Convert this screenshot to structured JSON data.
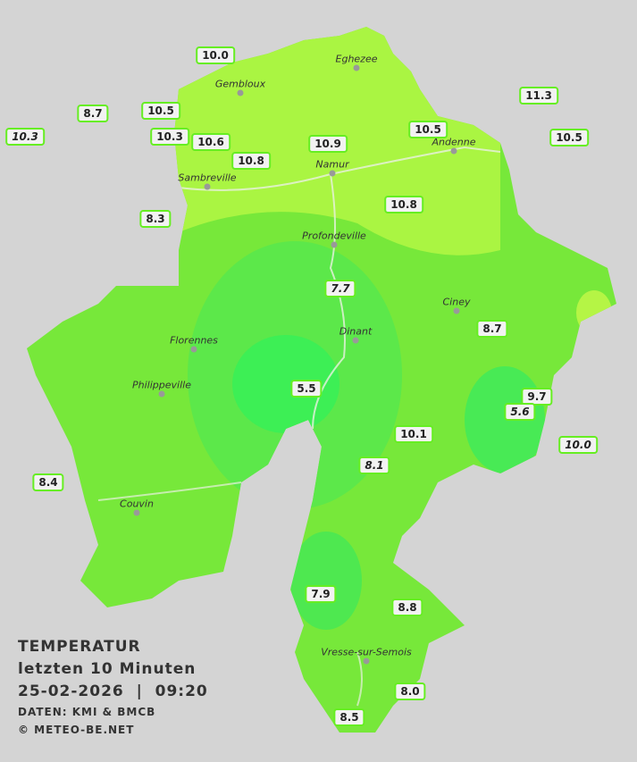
{
  "legend": {
    "title": "TEMPERATUR",
    "period": "letzten 10 Minuten",
    "datetime": "25-02-2026  |  09:20",
    "source": "DATEN: KMI & BMCB",
    "copyright": "© METEO-BE.NET"
  },
  "cities": [
    "Eghezee",
    "Gembloux",
    "Andenne",
    "Namur",
    "Sambreville",
    "Profondeville",
    "Ciney",
    "Dinant",
    "Florennes",
    "Philippeville",
    "Couvin",
    "Vresse-sur-Semois"
  ],
  "stations": [
    {
      "label": "10.0"
    },
    {
      "label": "8.7"
    },
    {
      "label": "10.5"
    },
    {
      "label": "10.3",
      "italic": true
    },
    {
      "label": "10.3"
    },
    {
      "label": "10.6"
    },
    {
      "label": "10.8"
    },
    {
      "label": "10.9"
    },
    {
      "label": "10.5"
    },
    {
      "label": "11.3"
    },
    {
      "label": "10.5"
    },
    {
      "label": "10.8"
    },
    {
      "label": "8.3"
    },
    {
      "label": "7.7",
      "italic": true
    },
    {
      "label": "8.7"
    },
    {
      "label": "5.5"
    },
    {
      "label": "9.7"
    },
    {
      "label": "5.6",
      "italic": true
    },
    {
      "label": "10.1"
    },
    {
      "label": "10.0",
      "italic": true
    },
    {
      "label": "8.1",
      "italic": true
    },
    {
      "label": "8.4"
    },
    {
      "label": "7.9"
    },
    {
      "label": "8.8"
    },
    {
      "label": "8.0"
    },
    {
      "label": "8.5"
    }
  ]
}
